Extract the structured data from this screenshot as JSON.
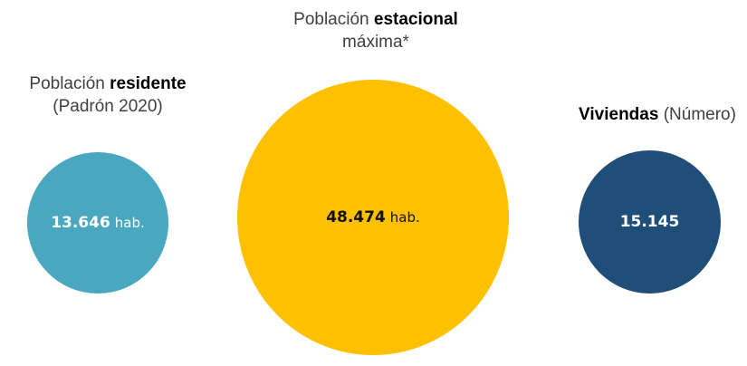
{
  "chart_data": {
    "type": "bubble",
    "items": [
      {
        "title_pre": "Población ",
        "title_bold": "residente",
        "title_line2": "(Padrón 2020)",
        "value": 13646,
        "value_text": "13.646",
        "unit": "hab.",
        "color": "#4aa7c0"
      },
      {
        "title_pre": "Población ",
        "title_bold": "estacional",
        "title_line2": "máxima*",
        "value": 48474,
        "value_text": "48.474",
        "unit": "hab.",
        "color": "#ffc000"
      },
      {
        "title_pre": "",
        "title_bold": "Viviendas",
        "title_post": " (Número)",
        "value": 15145,
        "value_text": "15.145",
        "unit": "",
        "color": "#1f4e79"
      }
    ]
  }
}
